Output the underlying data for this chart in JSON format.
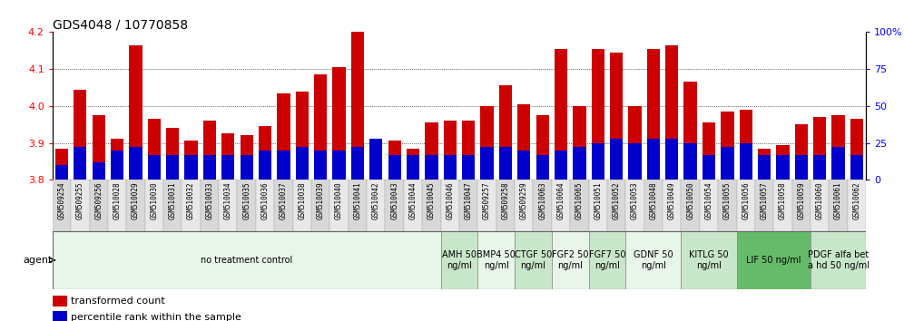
{
  "title": "GDS4048 / 10770858",
  "samples": [
    "GSM509254",
    "GSM509255",
    "GSM509256",
    "GSM510028",
    "GSM510029",
    "GSM510030",
    "GSM510031",
    "GSM510032",
    "GSM510033",
    "GSM510034",
    "GSM510035",
    "GSM510036",
    "GSM510037",
    "GSM510038",
    "GSM510039",
    "GSM510040",
    "GSM510041",
    "GSM510042",
    "GSM510043",
    "GSM510044",
    "GSM510045",
    "GSM510046",
    "GSM510047",
    "GSM509257",
    "GSM509258",
    "GSM509259",
    "GSM510063",
    "GSM510064",
    "GSM510065",
    "GSM510051",
    "GSM510052",
    "GSM510053",
    "GSM510048",
    "GSM510049",
    "GSM510050",
    "GSM510054",
    "GSM510055",
    "GSM510056",
    "GSM510057",
    "GSM510058",
    "GSM510059",
    "GSM510060",
    "GSM510061",
    "GSM510062"
  ],
  "red_values": [
    3.885,
    4.045,
    3.975,
    3.91,
    4.165,
    3.965,
    3.94,
    3.905,
    3.96,
    3.925,
    3.92,
    3.945,
    4.035,
    4.04,
    4.085,
    4.105,
    4.2,
    3.905,
    3.905,
    3.885,
    3.955,
    3.96,
    3.96,
    4.0,
    4.055,
    4.005,
    3.975,
    4.155,
    4.0,
    4.155,
    4.145,
    4.0,
    4.155,
    4.165,
    4.065,
    3.955,
    3.985,
    3.99,
    3.885,
    3.895,
    3.95,
    3.97,
    3.975,
    3.965
  ],
  "blue_percentiles": [
    10,
    22,
    12,
    20,
    22,
    17,
    17,
    17,
    17,
    17,
    17,
    20,
    20,
    22,
    20,
    20,
    22,
    28,
    17,
    17,
    17,
    17,
    17,
    22,
    22,
    20,
    17,
    20,
    22,
    25,
    28,
    25,
    28,
    28,
    25,
    17,
    22,
    25,
    17,
    17,
    17,
    17,
    22,
    17
  ],
  "agents": [
    {
      "label": "no treatment control",
      "start": 0,
      "end": 21,
      "color": "#e8f5e9",
      "bright": false
    },
    {
      "label": "AMH 50\nng/ml",
      "start": 21,
      "end": 23,
      "color": "#c8e6c9",
      "bright": false
    },
    {
      "label": "BMP4 50\nng/ml",
      "start": 23,
      "end": 25,
      "color": "#e8f5e9",
      "bright": false
    },
    {
      "label": "CTGF 50\nng/ml",
      "start": 25,
      "end": 27,
      "color": "#c8e6c9",
      "bright": false
    },
    {
      "label": "FGF2 50\nng/ml",
      "start": 27,
      "end": 29,
      "color": "#e8f5e9",
      "bright": false
    },
    {
      "label": "FGF7 50\nng/ml",
      "start": 29,
      "end": 31,
      "color": "#c8e6c9",
      "bright": false
    },
    {
      "label": "GDNF 50\nng/ml",
      "start": 31,
      "end": 34,
      "color": "#e8f5e9",
      "bright": false
    },
    {
      "label": "KITLG 50\nng/ml",
      "start": 34,
      "end": 37,
      "color": "#c8e6c9",
      "bright": false
    },
    {
      "label": "LIF 50 ng/ml",
      "start": 37,
      "end": 41,
      "color": "#66bb6a",
      "bright": true
    },
    {
      "label": "PDGF alfa bet\na hd 50 ng/ml",
      "start": 41,
      "end": 44,
      "color": "#c8e6c9",
      "bright": false
    }
  ],
  "ylim_left": [
    3.8,
    4.2
  ],
  "ylim_right": [
    0,
    100
  ],
  "yticks_left": [
    3.8,
    3.9,
    4.0,
    4.1,
    4.2
  ],
  "yticks_right": [
    0,
    25,
    50,
    75,
    100
  ],
  "bar_color_red": "#cc0000",
  "bar_color_blue": "#0000cc",
  "bg_color": "#ffffff",
  "title_fontsize": 10,
  "sample_fontsize": 5.5,
  "agent_fontsize": 7
}
